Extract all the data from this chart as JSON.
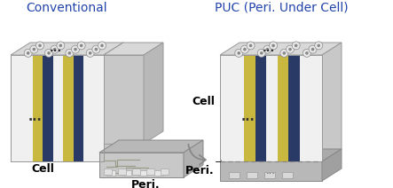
{
  "bg_color": "#ffffff",
  "title_conventional": "Conventional",
  "title_puc": "PUC (Peri. Under Cell)",
  "title_color": "#2244aa",
  "title_fontsize": 10,
  "label_fontsize": 9,
  "label_fontweight": "bold",
  "cell_face_color": "#f0f0f0",
  "cell_top_color": "#d8d8d8",
  "cell_right_color": "#c8c8c8",
  "cell_edge": "#999999",
  "peri_face_color": "#c8c8c8",
  "peri_top_color": "#b8b8b8",
  "peri_right_color": "#b0b0b0",
  "peri_edge": "#888888",
  "puc_peri_face_color": "#b8b8b8",
  "puc_peri_edge": "#888888",
  "stripe_seq": [
    "#f0f0f0",
    "#f0f0f0",
    "#c8b840",
    "#2a3a66",
    "#f0f0f0",
    "#c8b840",
    "#2a3a66",
    "#f0f0f0",
    "#f0f0f0"
  ],
  "circle_fc": "#e8e8e8",
  "circle_ec": "#888888",
  "dots_color": "#333333",
  "arrow_color": "#888888",
  "dashed_color": "#888888"
}
